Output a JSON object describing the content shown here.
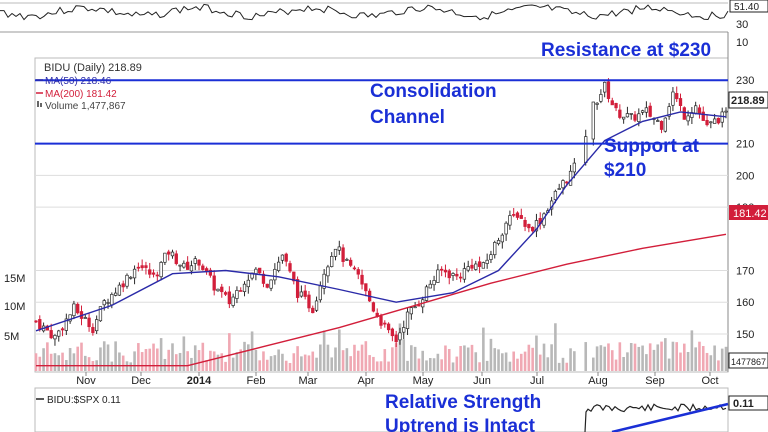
{
  "chart_data": {
    "type": "candlestick",
    "symbol_label": "BIDU (Daily) 218.89",
    "legend": [
      {
        "label": "MA(50) 218.46",
        "color": "#2a2aa8"
      },
      {
        "label": "MA(200) 181.42",
        "color": "#d21e3a"
      },
      {
        "label": "Volume 1,477,867",
        "color": "#666666"
      }
    ],
    "x_labels": [
      "Nov",
      "Dec",
      "2014",
      "Feb",
      "Mar",
      "Apr",
      "May",
      "Jun",
      "Jul",
      "Aug",
      "Sep",
      "Oct"
    ],
    "y_ticks": [
      150,
      160,
      170,
      190,
      200,
      210,
      230
    ],
    "ylim": [
      138,
      237
    ],
    "volume_ticks": [
      "15M",
      "10M",
      "5M"
    ],
    "support": 210,
    "resistance": 230,
    "last_price": "218.89",
    "ma200_badge": "181.42",
    "volume_badge": "1477867",
    "top_panel": {
      "ticks": [
        "30",
        "10"
      ],
      "badge": "51.40"
    },
    "rs_panel": {
      "label": "BIDU:$SPX 0.11",
      "badge": "0.11"
    },
    "annotations": {
      "resistance": "Resistance at $230",
      "channel": [
        "Consolidation",
        "Channel"
      ],
      "support": [
        "Support at",
        "$210"
      ],
      "rs": [
        "Relative Strength",
        "Uptrend is Intact"
      ]
    },
    "price_path": [
      [
        0,
        154
      ],
      [
        5,
        149
      ],
      [
        10,
        158
      ],
      [
        15,
        152
      ],
      [
        18,
        160
      ],
      [
        22,
        165
      ],
      [
        27,
        172
      ],
      [
        31,
        168
      ],
      [
        35,
        176
      ],
      [
        39,
        171
      ],
      [
        43,
        173
      ],
      [
        47,
        165
      ],
      [
        51,
        160
      ],
      [
        55,
        167
      ],
      [
        58,
        170
      ],
      [
        61,
        166
      ],
      [
        65,
        175
      ],
      [
        69,
        163
      ],
      [
        73,
        158
      ],
      [
        76,
        170
      ],
      [
        79,
        178
      ],
      [
        82,
        172
      ],
      [
        85,
        168
      ],
      [
        89,
        158
      ],
      [
        93,
        150
      ],
      [
        95,
        148
      ],
      [
        98,
        156
      ],
      [
        101,
        160
      ],
      [
        104,
        166
      ],
      [
        107,
        170
      ],
      [
        111,
        168
      ],
      [
        115,
        172
      ],
      [
        118,
        171
      ],
      [
        121,
        178
      ],
      [
        124,
        185
      ],
      [
        127,
        188
      ],
      [
        130,
        183
      ],
      [
        133,
        186
      ],
      [
        136,
        192
      ],
      [
        138,
        196
      ],
      [
        140,
        199
      ],
      [
        143,
        204
      ],
      [
        147,
        222
      ],
      [
        150,
        228
      ],
      [
        153,
        220
      ],
      [
        157,
        218
      ],
      [
        161,
        220
      ],
      [
        165,
        216
      ],
      [
        168,
        226
      ],
      [
        171,
        219
      ],
      [
        174,
        222
      ],
      [
        177,
        215
      ],
      [
        180,
        218
      ],
      [
        182,
        218.89
      ]
    ],
    "ma50_path": [
      [
        0,
        151
      ],
      [
        20,
        159
      ],
      [
        36,
        169
      ],
      [
        50,
        170
      ],
      [
        64,
        168
      ],
      [
        80,
        164
      ],
      [
        95,
        160
      ],
      [
        110,
        163
      ],
      [
        122,
        170
      ],
      [
        132,
        183
      ],
      [
        140,
        197
      ],
      [
        150,
        211
      ],
      [
        160,
        217
      ],
      [
        170,
        220
      ],
      [
        182,
        218.46
      ]
    ],
    "ma200_path": [
      [
        0,
        140
      ],
      [
        40,
        140
      ],
      [
        60,
        146
      ],
      [
        80,
        152
      ],
      [
        100,
        159
      ],
      [
        120,
        166
      ],
      [
        140,
        172
      ],
      [
        160,
        177
      ],
      [
        182,
        181.42
      ]
    ]
  },
  "colors": {
    "up": "#2a2a2a",
    "down": "#d21e3a",
    "ma50": "#2a2aa8",
    "ma200": "#d21e3a",
    "hline": "#1a2fd6",
    "annotation": "#1a2fd6"
  }
}
